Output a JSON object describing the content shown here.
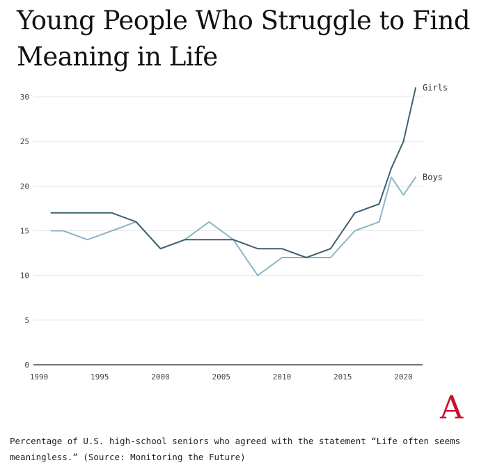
{
  "title": "Young People Who Struggle to Find Meaning in Life",
  "caption": "Percentage of U.S. high-school seniors who agreed with the statement “Life often seems meaningless.” (Source: Monitoring the Future)",
  "logo_letter": "A",
  "colors": {
    "girls": "#3d6070",
    "boys": "#8cb5c6",
    "logo": "#c8102e",
    "grid": "#e4e4e4"
  },
  "chart_data": {
    "type": "line",
    "title": "Young People Who Struggle to Find Meaning in Life",
    "xlabel": "",
    "ylabel": "",
    "xlim": [
      1990,
      2021.5
    ],
    "ylim": [
      0,
      30
    ],
    "x_ticks": [
      1990,
      1995,
      2000,
      2005,
      2010,
      2015,
      2020
    ],
    "y_ticks": [
      0,
      5,
      10,
      15,
      20,
      25,
      30
    ],
    "grid": "horizontal",
    "series": [
      {
        "name": "Girls",
        "x": [
          1991,
          1992,
          1994,
          1996,
          1998,
          2000,
          2002,
          2004,
          2006,
          2008,
          2010,
          2012,
          2014,
          2016,
          2018,
          2019,
          2020,
          2021
        ],
        "values": [
          17,
          17,
          17,
          17,
          16,
          13,
          14,
          14,
          14,
          13,
          13,
          12,
          13,
          17,
          18,
          22,
          25,
          31
        ]
      },
      {
        "name": "Boys",
        "x": [
          1991,
          1992,
          1994,
          1996,
          1998,
          2000,
          2002,
          2004,
          2006,
          2008,
          2010,
          2012,
          2014,
          2016,
          2018,
          2019,
          2020,
          2021
        ],
        "values": [
          15,
          15,
          14,
          15,
          16,
          13,
          14,
          16,
          14,
          10,
          12,
          12,
          12,
          15,
          16,
          21,
          19,
          21
        ]
      }
    ]
  }
}
